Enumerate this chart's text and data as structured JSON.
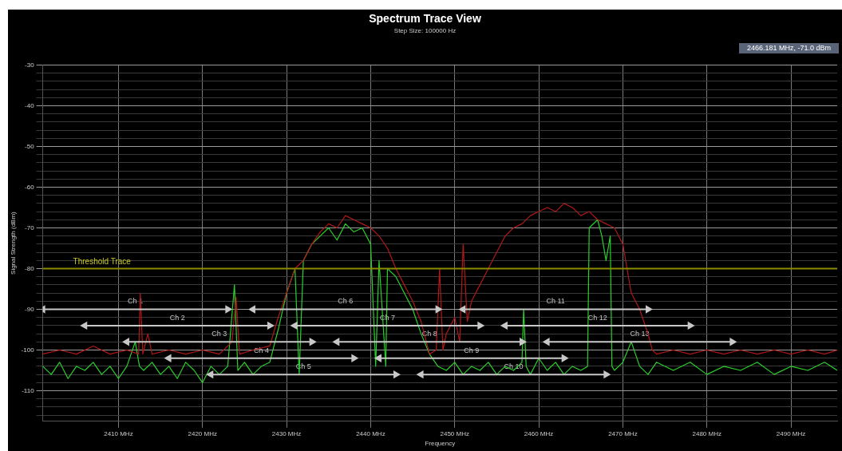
{
  "chart_data": {
    "type": "line",
    "title": "Spectrum Trace View",
    "subtitle": "Step Size: 100000 Hz",
    "xlabel": "Frequency",
    "ylabel": "Signal Strength (dBm)",
    "annotations": [
      "2466.181 MHz, -71.0 dBm"
    ],
    "series": [
      {
        "name": "Ch 1",
        "color": "#c8c8c8",
        "marker": "triangle",
        "x": [
          2401,
          2423
        ],
        "values": [
          -90,
          -90
        ]
      },
      {
        "name": "Ch 2",
        "color": "#c8c8c8",
        "marker": "triangle",
        "x": [
          2406,
          2428
        ],
        "values": [
          -94,
          -94
        ]
      },
      {
        "name": "Ch 3",
        "color": "#c8c8c8",
        "marker": "triangle",
        "x": [
          2411,
          2433
        ],
        "values": [
          -98,
          -98
        ]
      },
      {
        "name": "Ch 4",
        "color": "#c8c8c8",
        "marker": "triangle",
        "x": [
          2416,
          2438
        ],
        "values": [
          -102,
          -102
        ]
      },
      {
        "name": "Ch 5",
        "color": "#c8c8c8",
        "marker": "triangle",
        "x": [
          2421,
          2443
        ],
        "values": [
          -106,
          -106
        ]
      },
      {
        "name": "Ch 6",
        "color": "#c8c8c8",
        "marker": "triangle",
        "x": [
          2426,
          2448
        ],
        "values": [
          -90,
          -90
        ]
      },
      {
        "name": "Ch 7",
        "color": "#c8c8c8",
        "marker": "triangle",
        "x": [
          2431,
          2453
        ],
        "values": [
          -94,
          -94
        ]
      },
      {
        "name": "Ch 8",
        "color": "#c8c8c8",
        "marker": "triangle",
        "x": [
          2436,
          2458
        ],
        "values": [
          -98,
          -98
        ]
      },
      {
        "name": "Ch 9",
        "color": "#c8c8c8",
        "marker": "triangle",
        "x": [
          2441,
          2463
        ],
        "values": [
          -102,
          -102
        ]
      },
      {
        "name": "Ch 10",
        "color": "#c8c8c8",
        "marker": "triangle",
        "x": [
          2446,
          2468
        ],
        "values": [
          -106,
          -106
        ]
      },
      {
        "name": "Ch 11",
        "color": "#c8c8c8",
        "marker": "triangle",
        "x": [
          2451,
          2473
        ],
        "values": [
          -90,
          -90
        ]
      },
      {
        "name": "Ch 12",
        "color": "#c8c8c8",
        "marker": "triangle",
        "x": [
          2456,
          2478
        ],
        "values": [
          -94,
          -94
        ]
      },
      {
        "name": "Ch 13",
        "color": "#c8c8c8",
        "marker": "triangle",
        "x": [
          2461,
          2483
        ],
        "values": [
          -98,
          -98
        ]
      },
      {
        "color": "#b01818",
        "x": [
          2401,
          2403,
          2405,
          2407,
          2409,
          2411,
          2412.4,
          2412.6,
          2412.9,
          2413.5,
          2414,
          2416,
          2418,
          2420,
          2422,
          2423.5,
          2424,
          2424.4,
          2426,
          2428,
          2429,
          2430,
          2431,
          2432,
          2433,
          2434,
          2435,
          2436,
          2437,
          2438,
          2439,
          2440,
          2441,
          2442,
          2443,
          2444,
          2445,
          2446,
          2447,
          2447.8,
          2448.2,
          2448.6,
          2449,
          2450,
          2450.6,
          2451,
          2451.5,
          2452,
          2453,
          2454,
          2455,
          2456,
          2457,
          2458,
          2459,
          2460,
          2461,
          2462,
          2463,
          2464,
          2465,
          2466,
          2467,
          2468,
          2469,
          2470,
          2470.5,
          2471,
          2472,
          2473,
          2473.5,
          2474,
          2476,
          2478,
          2480,
          2482,
          2484,
          2486,
          2488,
          2490,
          2492,
          2494,
          2495.5
        ],
        "values": [
          -101,
          -100,
          -101,
          -99,
          -101,
          -100,
          -101,
          -86,
          -101,
          -96,
          -101,
          -100,
          -101,
          -100,
          -101,
          -98,
          -87,
          -101,
          -100,
          -99,
          -92,
          -86,
          -80,
          -78,
          -74,
          -71,
          -69,
          -70,
          -67,
          -68,
          -69,
          -70,
          -72,
          -75,
          -80,
          -84,
          -88,
          -93,
          -101,
          -100,
          -80,
          -100,
          -96,
          -92,
          -98,
          -74,
          -93,
          -88,
          -84,
          -80,
          -76,
          -72,
          -70,
          -69,
          -67,
          -66,
          -65,
          -66,
          -64,
          -65,
          -67,
          -66,
          -68,
          -69,
          -70,
          -74,
          -80,
          -86,
          -90,
          -96,
          -100,
          -101,
          -100,
          -101,
          -100,
          -101,
          -100,
          -101,
          -100,
          -101,
          -100,
          -101,
          -100
        ]
      },
      {
        "color": "#2ad02a",
        "x": [
          2401,
          2402,
          2403,
          2404,
          2405,
          2406,
          2407,
          2408,
          2409,
          2410,
          2411,
          2412,
          2412.5,
          2413,
          2414,
          2415,
          2416,
          2417,
          2418,
          2419,
          2420,
          2421,
          2422,
          2423,
          2423.8,
          2424.2,
          2425,
          2426,
          2427,
          2428,
          2429,
          2430,
          2431,
          2431.5,
          2432,
          2433,
          2434,
          2435,
          2436,
          2437,
          2438,
          2439,
          2440,
          2440.6,
          2441,
          2441.8,
          2442,
          2443,
          2444,
          2445,
          2446,
          2447,
          2448,
          2449,
          2450,
          2451,
          2452,
          2453,
          2454,
          2455,
          2456,
          2457,
          2458,
          2458.2,
          2458.5,
          2459,
          2460,
          2461,
          2462,
          2463,
          2464,
          2465,
          2465.8,
          2466,
          2467,
          2467.5,
          2468,
          2468.5,
          2468.7,
          2469,
          2470,
          2471,
          2472,
          2473,
          2474,
          2476,
          2478,
          2480,
          2482,
          2484,
          2486,
          2488,
          2490,
          2492,
          2494,
          2495.5
        ],
        "values": [
          -104,
          -106,
          -103,
          -107,
          -104,
          -105,
          -103,
          -106,
          -104,
          -107,
          -104,
          -98,
          -104,
          -105,
          -103,
          -106,
          -104,
          -107,
          -103,
          -105,
          -108,
          -104,
          -106,
          -104,
          -84,
          -105,
          -103,
          -106,
          -104,
          -103,
          -95,
          -86,
          -80,
          -106,
          -78,
          -74,
          -72,
          -70,
          -73,
          -69,
          -71,
          -70,
          -74,
          -104,
          -78,
          -104,
          -80,
          -82,
          -86,
          -90,
          -96,
          -101,
          -104,
          -105,
          -103,
          -106,
          -104,
          -105,
          -103,
          -106,
          -104,
          -105,
          -103,
          -90,
          -104,
          -106,
          -102,
          -105,
          -103,
          -106,
          -104,
          -105,
          -104,
          -70,
          -68,
          -72,
          -78,
          -72,
          -104,
          -105,
          -103,
          -98,
          -104,
          -106,
          -103,
          -105,
          -103,
          -106,
          -104,
          -105,
          -103,
          -106,
          -104,
          -105,
          -103,
          -105
        ]
      }
    ],
    "xlim": [
      2401,
      2495.5
    ],
    "xticks": [
      {
        "value": 2410,
        "label": "2410 MHz"
      },
      {
        "value": 2420,
        "label": "2420 MHz"
      },
      {
        "value": 2430,
        "label": "2430 MHz"
      },
      {
        "value": 2440,
        "label": "2440 MHz"
      },
      {
        "value": 2450,
        "label": "2450 MHz"
      },
      {
        "value": 2460,
        "label": "2460 MHz"
      },
      {
        "value": 2470,
        "label": "2470 MHz"
      },
      {
        "value": 2480,
        "label": "2480 MHz"
      },
      {
        "value": 2490,
        "label": "2490 MHz"
      }
    ],
    "ylim": [
      -117.5,
      -30
    ],
    "yticks": [
      -30,
      {
        "value": -32,
        "label": null
      },
      {
        "value": -34,
        "label": null
      },
      {
        "value": -36,
        "label": null
      },
      {
        "value": -38,
        "label": null
      },
      -40,
      {
        "value": -42,
        "label": null
      },
      {
        "value": -44,
        "label": null
      },
      {
        "value": -46,
        "label": null
      },
      {
        "value": -48,
        "label": null
      },
      -50,
      {
        "value": -52,
        "label": null
      },
      {
        "value": -54,
        "label": null
      },
      {
        "value": -56,
        "label": null
      },
      {
        "value": -58,
        "label": null
      },
      -60,
      {
        "value": -62,
        "label": null
      },
      {
        "value": -64,
        "label": null
      },
      {
        "value": -66,
        "label": null
      },
      {
        "value": -68,
        "label": null
      },
      -70,
      {
        "value": -72,
        "label": null
      },
      {
        "value": -74,
        "label": null
      },
      {
        "value": -76,
        "label": null
      },
      {
        "value": -78,
        "label": null
      },
      -80,
      {
        "value": -82,
        "label": null
      },
      {
        "value": -84,
        "label": null
      },
      {
        "value": -86,
        "label": null
      },
      {
        "value": -88,
        "label": null
      },
      -90,
      {
        "value": -92,
        "label": null
      },
      {
        "value": -94,
        "label": null
      },
      {
        "value": -96,
        "label": null
      },
      {
        "value": -98,
        "label": null
      },
      -100,
      {
        "value": -102,
        "label": null
      },
      {
        "value": -104,
        "label": null
      },
      {
        "value": -106,
        "label": null
      },
      {
        "value": -108,
        "label": null
      },
      -110,
      {
        "value": -112,
        "label": null
      },
      {
        "value": -114,
        "label": null
      },
      {
        "value": -116,
        "label": null
      }
    ],
    "grid": true,
    "marker": "none",
    "line_style": "solid",
    "ref_lines": [
      {
        "axis": "y",
        "value": -80,
        "label": "Threshold Trace",
        "color": "#8c8c00"
      }
    ]
  }
}
